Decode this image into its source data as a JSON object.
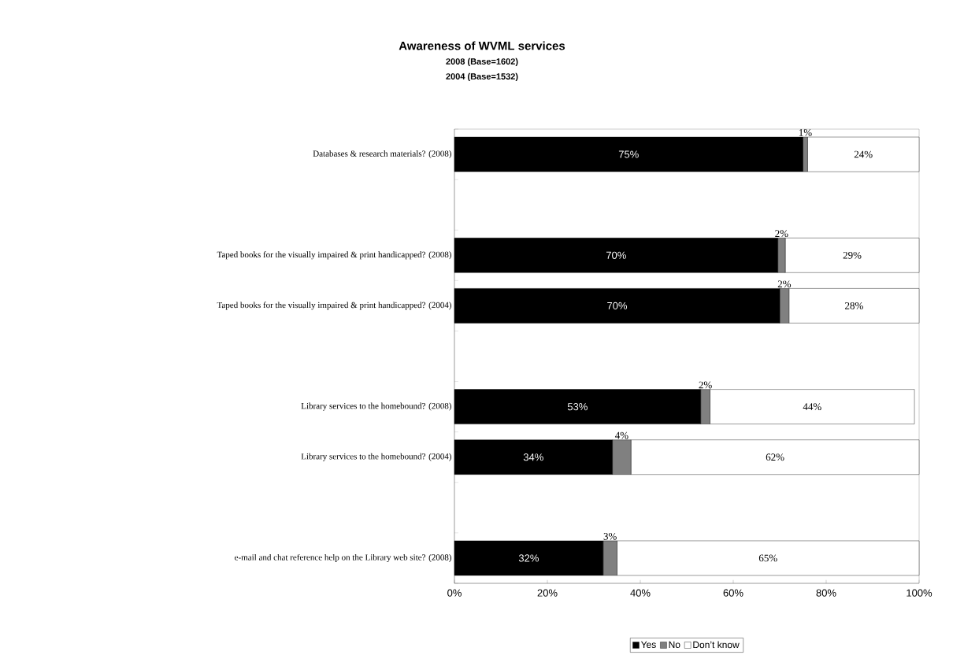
{
  "chart_data": {
    "type": "bar",
    "orientation": "horizontal",
    "stacked": true,
    "title": "Awareness of WVML services",
    "subtitle": "2008 (Base=1602)",
    "annotations": [
      "2004 (Base=1532)"
    ],
    "categories": [
      "Databases & research materials? (2008)",
      null,
      "Taped books for the visually impaired & print handicapped? (2008)",
      "Taped books for the visually impaired & print handicapped? (2004)",
      null,
      "Library services to the homebound? (2008)",
      "Library services to the homebound? (2004)",
      null,
      "e-mail and chat reference help on the Library web site? (2008)"
    ],
    "series": [
      {
        "name": "Yes",
        "color": "#000000",
        "values": [
          75,
          null,
          69.6,
          70,
          null,
          53,
          34,
          null,
          32
        ],
        "value_labels": [
          "75%",
          null,
          "70%",
          "70%",
          null,
          "53%",
          "34%",
          null,
          "32%"
        ]
      },
      {
        "name": "No",
        "color": "#808080",
        "values": [
          1,
          null,
          1.6,
          2,
          null,
          2,
          4,
          null,
          3
        ],
        "value_labels": [
          "1%",
          null,
          "2%",
          "2%",
          null,
          "2%",
          "4%",
          null,
          "3%"
        ]
      },
      {
        "name": "Don’t know",
        "color": "#ffffff",
        "values": [
          24,
          null,
          28.8,
          28,
          null,
          44,
          62,
          null,
          65
        ],
        "value_labels": [
          "24%",
          null,
          "29%",
          "28%",
          null,
          "44%",
          "62%",
          null,
          "65%"
        ]
      }
    ],
    "xlim": [
      0,
      100
    ],
    "xticks": [
      {
        "value": 0,
        "label": "0%"
      },
      {
        "value": 20,
        "label": "20%"
      },
      {
        "value": 40,
        "label": "40%"
      },
      {
        "value": 60,
        "label": "60%"
      },
      {
        "value": 80,
        "label": "80%"
      },
      {
        "value": 100,
        "label": "100%"
      }
    ],
    "grid": false,
    "legend": "bottom"
  }
}
